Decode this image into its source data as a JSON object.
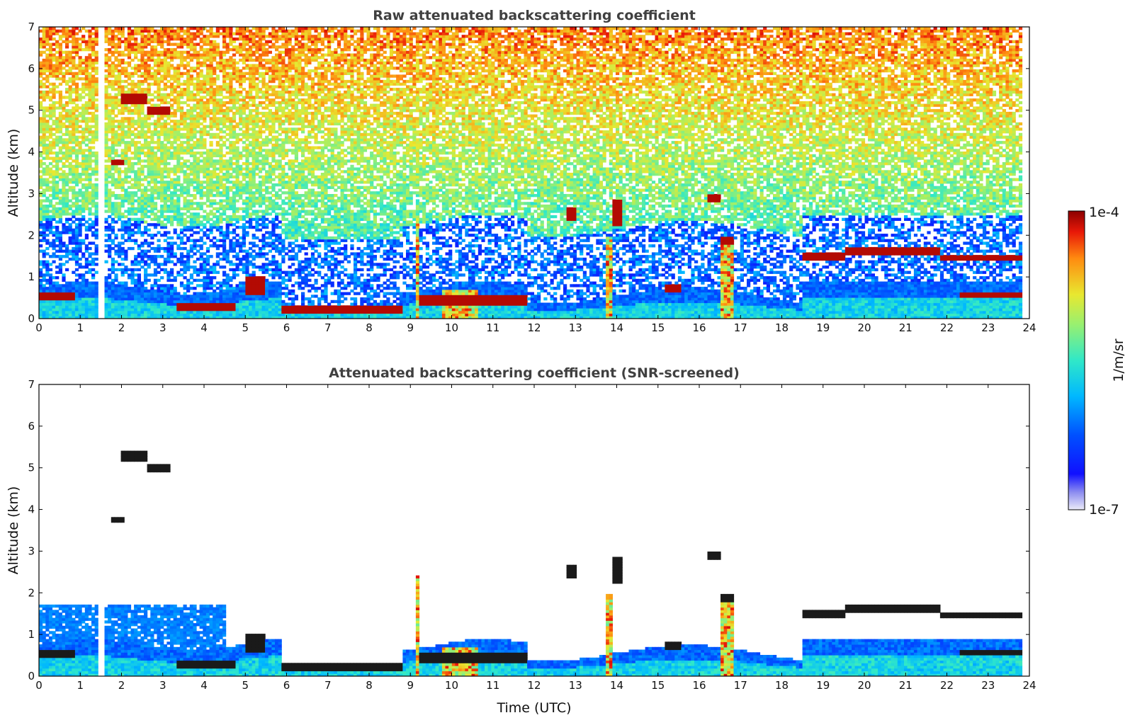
{
  "chart_data": [
    {
      "type": "heatmap",
      "title": "Raw attenuated backscattering coefficient",
      "xlabel": "",
      "ylabel": "Altitude (km)",
      "xlim": [
        0,
        24
      ],
      "ylim": [
        0,
        7
      ],
      "x_ticks": [
        "0",
        "1",
        "2",
        "3",
        "4",
        "5",
        "6",
        "7",
        "8",
        "9",
        "10",
        "11",
        "12",
        "13",
        "14",
        "15",
        "16",
        "17",
        "18",
        "19",
        "20",
        "21",
        "22",
        "23",
        "24"
      ],
      "y_ticks": [
        "0",
        "1",
        "2",
        "3",
        "4",
        "5",
        "6",
        "7"
      ],
      "data_end_hour": 23.82,
      "data_gap": [
        1.45,
        1.58
      ],
      "screened": false,
      "layers": [
        {
          "type": "cloud",
          "x": [
            0.0,
            0.9
          ],
          "y": [
            0.45,
            0.62
          ]
        },
        {
          "type": "cloud",
          "x": [
            2.0,
            2.65
          ],
          "y": [
            5.15,
            5.4
          ]
        },
        {
          "type": "cloud",
          "x": [
            2.65,
            3.15
          ],
          "y": [
            4.9,
            5.1
          ]
        },
        {
          "type": "cloud",
          "x": [
            1.75,
            2.05
          ],
          "y": [
            3.72,
            3.82
          ]
        },
        {
          "type": "cloud",
          "x": [
            3.3,
            4.8
          ],
          "y": [
            0.22,
            0.4
          ]
        },
        {
          "type": "cloud",
          "x": [
            5.0,
            5.5
          ],
          "y": [
            0.55,
            1.0
          ]
        },
        {
          "type": "cloud",
          "x": [
            5.9,
            8.8
          ],
          "y": [
            0.15,
            0.32
          ]
        },
        {
          "type": "cloud",
          "x": [
            9.2,
            11.8
          ],
          "y": [
            0.3,
            0.55
          ]
        },
        {
          "type": "cloud",
          "x": [
            12.8,
            13.0
          ],
          "y": [
            2.35,
            2.65
          ]
        },
        {
          "type": "cloud",
          "x": [
            13.9,
            14.1
          ],
          "y": [
            2.2,
            2.85
          ]
        },
        {
          "type": "cloud",
          "x": [
            15.2,
            15.6
          ],
          "y": [
            0.65,
            0.85
          ]
        },
        {
          "type": "cloud",
          "x": [
            16.2,
            16.5
          ],
          "y": [
            2.8,
            3.0
          ]
        },
        {
          "type": "cloud",
          "x": [
            16.5,
            16.8
          ],
          "y": [
            1.8,
            2.0
          ]
        },
        {
          "type": "cloud",
          "x": [
            18.5,
            19.5
          ],
          "y": [
            1.4,
            1.6
          ]
        },
        {
          "type": "cloud",
          "x": [
            19.5,
            21.8
          ],
          "y": [
            1.5,
            1.7
          ]
        },
        {
          "type": "cloud",
          "x": [
            21.8,
            23.8
          ],
          "y": [
            1.4,
            1.55
          ]
        },
        {
          "type": "cloud",
          "x": [
            22.3,
            23.8
          ],
          "y": [
            0.5,
            0.65
          ]
        },
        {
          "type": "column",
          "x": [
            9.1,
            9.25
          ],
          "y": [
            0,
            2.4
          ]
        },
        {
          "type": "column",
          "x": [
            9.8,
            10.6
          ],
          "y": [
            0,
            0.7
          ]
        },
        {
          "type": "column",
          "x": [
            13.7,
            13.9
          ],
          "y": [
            0,
            2.0
          ]
        },
        {
          "type": "column",
          "x": [
            16.5,
            16.8
          ],
          "y": [
            0,
            2.0
          ]
        }
      ]
    },
    {
      "type": "heatmap",
      "title": "Attenuated backscattering coefficient (SNR-screened)",
      "xlabel": "Time (UTC)",
      "ylabel": "Altitude (km)",
      "xlim": [
        0,
        24
      ],
      "ylim": [
        0,
        7
      ],
      "x_ticks": [
        "0",
        "1",
        "2",
        "3",
        "4",
        "5",
        "6",
        "7",
        "8",
        "9",
        "10",
        "11",
        "12",
        "13",
        "14",
        "15",
        "16",
        "17",
        "18",
        "19",
        "20",
        "21",
        "22",
        "23",
        "24"
      ],
      "y_ticks": [
        "0",
        "1",
        "2",
        "3",
        "4",
        "5",
        "6",
        "7"
      ],
      "data_end_hour": 23.82,
      "data_gap": [
        1.45,
        1.58
      ],
      "screened": true
    }
  ],
  "colorbar": {
    "label": "1/m/sr",
    "max_label": "1e-4",
    "min_label": "1e-7",
    "scale": "log",
    "colormap": "jet"
  }
}
